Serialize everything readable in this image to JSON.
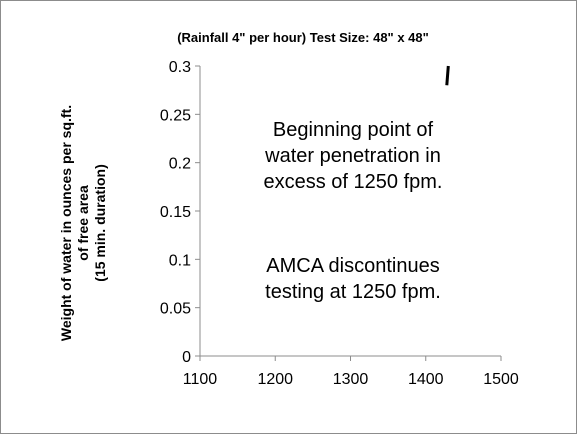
{
  "chart_data": {
    "type": "line",
    "title": "(Rainfall 4\" per hour) Test Size: 48\" x 48\"",
    "xlabel": "",
    "ylabel": [
      "Weight of water in ounces per sq.ft.",
      "of free area",
      "(15 min. duration)"
    ],
    "xlim": [
      1100,
      1500
    ],
    "ylim": [
      0,
      0.3
    ],
    "x_ticks": [
      "1100",
      "1200",
      "1300",
      "1400",
      "1500"
    ],
    "y_ticks": [
      "0",
      "0.05",
      "0.1",
      "0.15",
      "0.2",
      "0.25",
      "0.3"
    ],
    "grid": false,
    "legend": "none",
    "series": [
      {
        "color": "#000000",
        "x": [
          1428,
          1430
        ],
        "y": [
          0.28,
          0.3
        ]
      }
    ],
    "annotations": [
      [
        "Beginning point of",
        "water penetration in",
        "excess of 1250 fpm."
      ],
      [
        "AMCA discontinues",
        "testing at 1250 fpm."
      ]
    ]
  }
}
